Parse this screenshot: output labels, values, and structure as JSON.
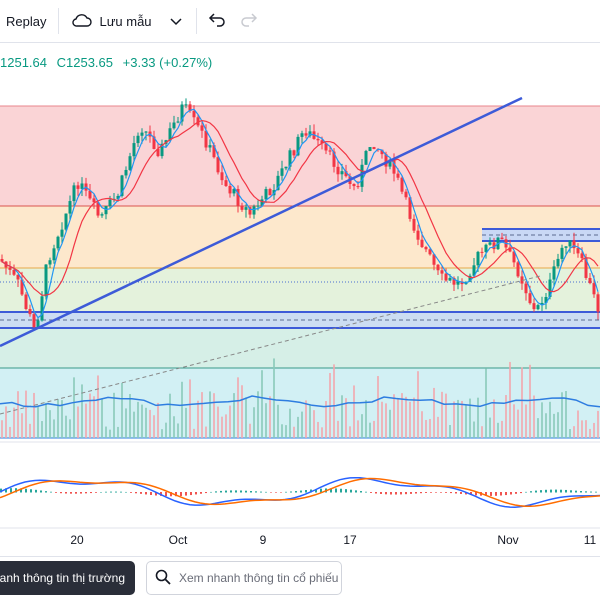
{
  "toolbar": {
    "replay_label": "Replay",
    "save_label": "Lưu mẫu",
    "icons": [
      "cloud-icon",
      "chevron-down-icon",
      "undo-icon",
      "redo-icon"
    ]
  },
  "legend": {
    "low": "1251.64",
    "close": "C1253.65",
    "change": "+3.33 (+0.27%)",
    "color": "#089981"
  },
  "xaxis": {
    "labels": [
      "20",
      "Oct",
      "9",
      "17",
      "Nov",
      "11"
    ]
  },
  "bottom": {
    "market_button": "nhanh thông tin thị trường",
    "stock_button": "Xem nhanh thông tin cổ phiếu"
  },
  "colors": {
    "up": "#089981",
    "down": "#f23645",
    "trendline": "#3d5bd8",
    "ma_red": "#f23645",
    "ma_blue": "#2196f3",
    "zone_red": "#fad4d6",
    "zone_orange": "#fde8cc",
    "zone_green": "#e4f2dc",
    "zone_teal": "#d6efe7",
    "zone_cyan": "#d2f0f4"
  }
}
